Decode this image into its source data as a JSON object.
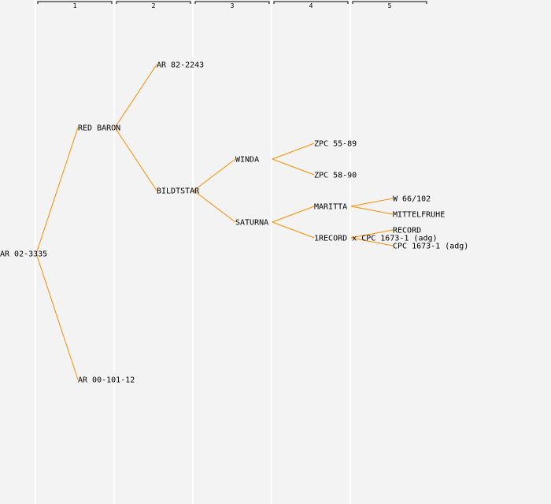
{
  "generations": [
    "1",
    "2",
    "3",
    "4",
    "5"
  ],
  "colors": {
    "line": "#ff8c00",
    "background": "#f3f3f3",
    "column_divider": "#ffffff"
  },
  "nodes": [
    {
      "id": "n0",
      "label": "AR 02-3335",
      "gen": 0,
      "row": 322,
      "parent": null
    },
    {
      "id": "n1",
      "label": "RED BARON",
      "gen": 1,
      "row": 162,
      "parent": "n0"
    },
    {
      "id": "n2",
      "label": "AR 00-101-12",
      "gen": 1,
      "row": 482,
      "parent": "n0"
    },
    {
      "id": "n3",
      "label": "AR 82-2243",
      "gen": 2,
      "row": 82,
      "parent": "n1"
    },
    {
      "id": "n4",
      "label": "BILDTSTAR",
      "gen": 2,
      "row": 242,
      "parent": "n1"
    },
    {
      "id": "n5",
      "label": "WINDA",
      "gen": 3,
      "row": 202,
      "parent": "n4"
    },
    {
      "id": "n6",
      "label": "SATURNA",
      "gen": 3,
      "row": 282,
      "parent": "n4"
    },
    {
      "id": "n7",
      "label": "ZPC 55-89",
      "gen": 4,
      "row": 182,
      "parent": "n5"
    },
    {
      "id": "n8",
      "label": "ZPC 58-90",
      "gen": 4,
      "row": 222,
      "parent": "n5"
    },
    {
      "id": "n9",
      "label": "MARITTA",
      "gen": 4,
      "row": 262,
      "parent": "n6"
    },
    {
      "id": "n10",
      "label": "1RECORD x CPC 1673-1 (adg)",
      "gen": 4,
      "row": 302,
      "parent": "n6"
    },
    {
      "id": "n11",
      "label": "W 66/102",
      "gen": 5,
      "row": 252,
      "parent": "n9"
    },
    {
      "id": "n12",
      "label": "MITTELFRUHE",
      "gen": 5,
      "row": 272,
      "parent": "n9"
    },
    {
      "id": "n13",
      "label": "RECORD",
      "gen": 5,
      "row": 292,
      "parent": "n10"
    },
    {
      "id": "n14",
      "label": "CPC 1673-1 (adg)",
      "gen": 5,
      "row": 312,
      "parent": "n10"
    }
  ]
}
